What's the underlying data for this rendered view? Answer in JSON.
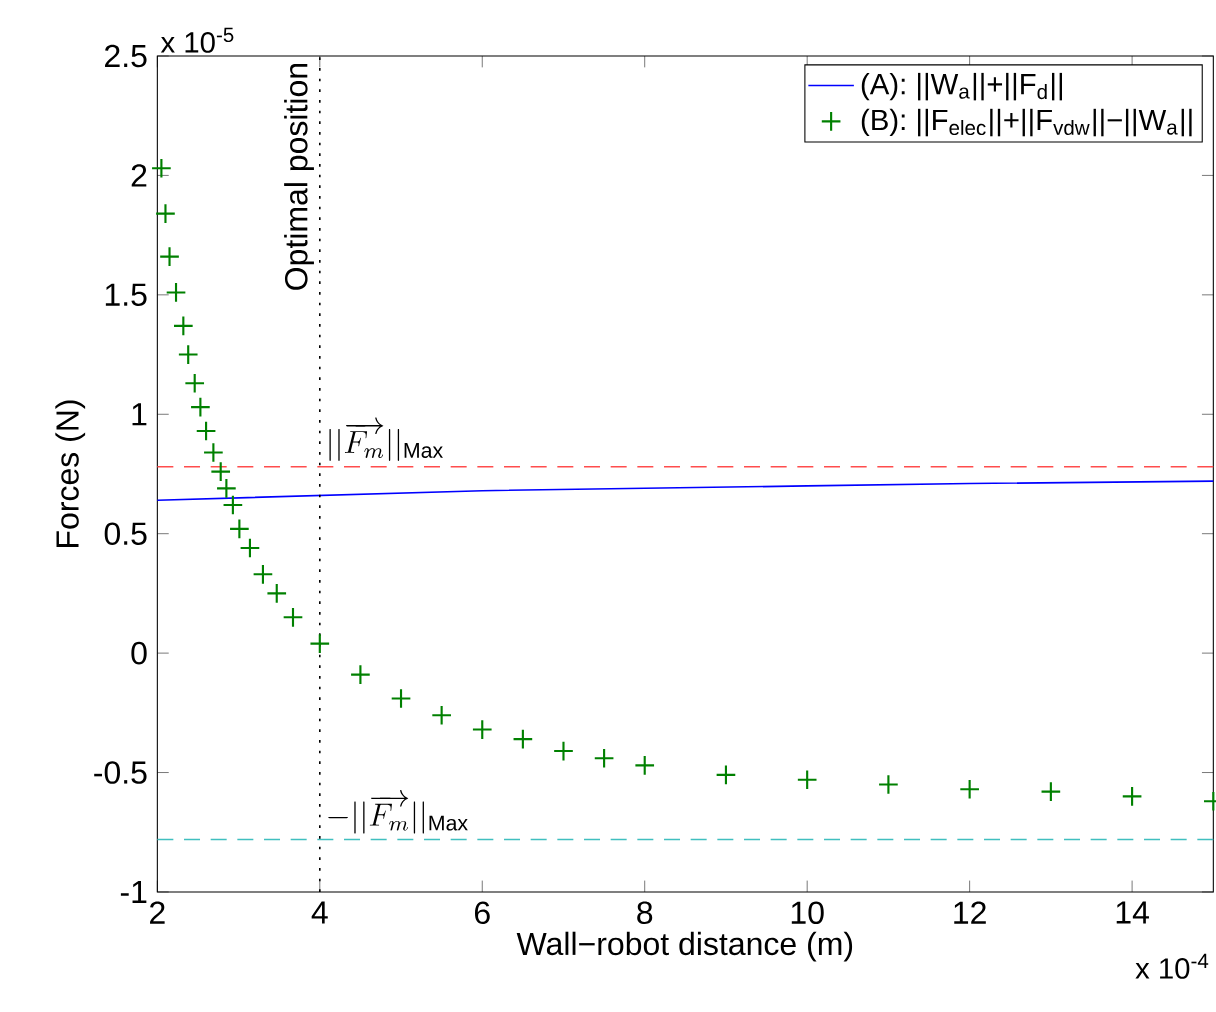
{
  "chart_data": {
    "type": "line",
    "xlabel": "Wall−robot distance (m)",
    "ylabel": "Forces (N)",
    "annotations": [
      "x 10$^{-5}$",
      "x 10$^{-4}$"
    ],
    "xlim": [
      2,
      15
    ],
    "ylim": [
      -1,
      2.5
    ],
    "xticks": [
      2,
      4,
      6,
      8,
      10,
      12,
      14
    ],
    "yticks": [
      -1,
      -0.5,
      0,
      0.5,
      1,
      1.5,
      2,
      2.5
    ],
    "legend": "top right",
    "grid": false,
    "series": [
      {
        "name": "(A): ||W$_{a}$||+||F$_{d}$||",
        "color": "#0000ff",
        "marker": "none",
        "line_style": "solid",
        "x": [
          2,
          4,
          6,
          8,
          10,
          12,
          15
        ],
        "values": [
          0.64,
          0.66,
          0.68,
          0.69,
          0.7,
          0.71,
          0.72
        ]
      },
      {
        "name": "(B): ||F$_{elec}$||+||F$_{vdw}$||−||W$_{a}$||",
        "type": "scatter",
        "color": "#008000",
        "marker": "cross",
        "x": [
          2.05,
          2.1,
          2.15,
          2.23,
          2.32,
          2.38,
          2.46,
          2.53,
          2.6,
          2.69,
          2.78,
          2.85,
          2.93,
          3.01,
          3.14,
          3.3,
          3.47,
          3.67,
          4.0,
          4.5,
          5.0,
          5.5,
          6.0,
          6.5,
          7.0,
          7.5,
          8.0,
          9.0,
          10.0,
          11.0,
          12.0,
          13.0,
          14.0,
          15.0
        ],
        "values": [
          2.03,
          1.84,
          1.66,
          1.51,
          1.37,
          1.25,
          1.13,
          1.03,
          0.93,
          0.84,
          0.76,
          0.69,
          0.62,
          0.52,
          0.44,
          0.33,
          0.25,
          0.15,
          0.04,
          -0.09,
          -0.19,
          -0.26,
          -0.32,
          -0.36,
          -0.41,
          -0.44,
          -0.47,
          -0.51,
          -0.53,
          -0.55,
          -0.57,
          -0.58,
          -0.6,
          -0.62
        ]
      }
    ],
    "ref_lines": [
      {
        "axis": "y",
        "value": 0.78,
        "label": "||\\overrightarrow{F_m}||_{\\mathrm{Max}}",
        "color": "#ff4d4d",
        "line_style": "dashed"
      },
      {
        "axis": "y",
        "value": -0.78,
        "label": "-||\\overrightarrow{F_m}||_{\\mathrm{Max}}",
        "color": "#40bfbf",
        "line_style": "dashed"
      },
      {
        "axis": "x",
        "value": 4,
        "label": "Optimal position",
        "color": "#000000",
        "line_style": "dotted"
      }
    ]
  }
}
